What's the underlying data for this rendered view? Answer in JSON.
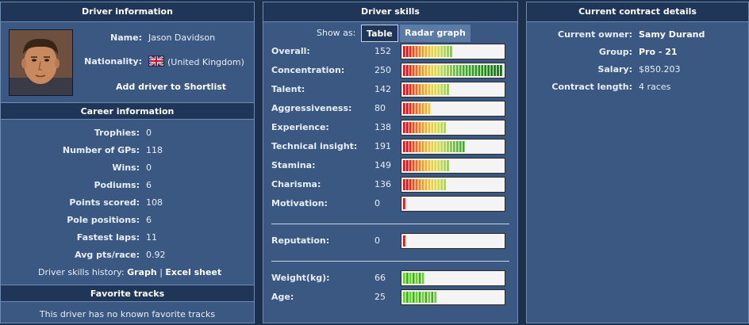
{
  "driver_info": {
    "title": "Driver information",
    "name_label": "Name:",
    "name": "Jason Davidson",
    "nationality_label": "Nationality:",
    "nationality": "(United Kingdom)",
    "shortlist_link": "Add driver to Shortlist"
  },
  "career": {
    "title": "Career information",
    "rows": [
      {
        "label": "Trophies:",
        "value": "0"
      },
      {
        "label": "Number of GPs:",
        "value": "118"
      },
      {
        "label": "Wins:",
        "value": "0"
      },
      {
        "label": "Podiums:",
        "value": "6"
      },
      {
        "label": "Points scored:",
        "value": "108"
      },
      {
        "label": "Pole positions:",
        "value": "6"
      },
      {
        "label": "Fastest laps:",
        "value": "11"
      },
      {
        "label": "Avg pts/race:",
        "value": "0.92"
      }
    ],
    "history_label": "Driver skills history:",
    "graph_link": "Graph",
    "divider": "|",
    "excel_link": "Excel sheet"
  },
  "favorites": {
    "title": "Favorite tracks",
    "empty_text": "This driver has no known favorite tracks"
  },
  "skills": {
    "title": "Driver skills",
    "show_as_label": "Show as:",
    "table_button": "Table",
    "radar_button": "Radar graph",
    "items": [
      {
        "label": "Overall:",
        "value": "152",
        "segments": 16,
        "max_segments": 32,
        "bar": "skill"
      },
      {
        "label": "Concentration:",
        "value": "250",
        "segments": 32,
        "max_segments": 32,
        "bar": "skill"
      },
      {
        "label": "Talent:",
        "value": "142",
        "segments": 15,
        "max_segments": 32,
        "bar": "skill"
      },
      {
        "label": "Aggressiveness:",
        "value": "80",
        "segments": 9,
        "max_segments": 32,
        "bar": "skill"
      },
      {
        "label": "Experience:",
        "value": "138",
        "segments": 14,
        "max_segments": 32,
        "bar": "skill"
      },
      {
        "label": "Technical insight:",
        "value": "191",
        "segments": 20,
        "max_segments": 32,
        "bar": "skill"
      },
      {
        "label": "Stamina:",
        "value": "149",
        "segments": 15,
        "max_segments": 32,
        "bar": "skill"
      },
      {
        "label": "Charisma:",
        "value": "136",
        "segments": 14,
        "max_segments": 32,
        "bar": "skill"
      },
      {
        "label": "Motivation:",
        "value": "0",
        "segments": 1,
        "max_segments": 32,
        "bar": "skill"
      }
    ],
    "reputation": {
      "label": "Reputation:",
      "value": "0",
      "segments": 1,
      "max_segments": 32,
      "bar": "skill"
    },
    "physical": [
      {
        "label": "Weight(kg):",
        "value": "66",
        "segments": 7,
        "max_segments": 32,
        "bar": "green"
      },
      {
        "label": "Age:",
        "value": "25",
        "segments": 11,
        "max_segments": 32,
        "bar": "green"
      }
    ]
  },
  "contract": {
    "title": "Current contract details",
    "rows": [
      {
        "label": "Current owner:",
        "value": "Samy Durand",
        "bold": true
      },
      {
        "label": "Group:",
        "value": "Pro - 21",
        "bold": true
      },
      {
        "label": "Salary:",
        "value": "$850.203",
        "bold": false
      },
      {
        "label": "Contract length:",
        "value": "4 races",
        "bold": false
      }
    ]
  },
  "colors": {
    "panel_bg": "#3a5882",
    "header_bg": "#1f3658",
    "page_bg": "#1c2f4b"
  }
}
